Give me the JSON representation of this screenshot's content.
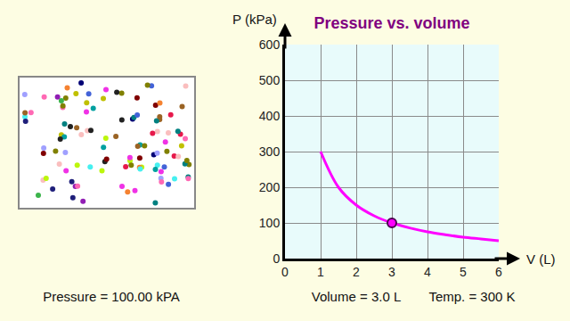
{
  "chart_data": {
    "type": "line",
    "title": "Pressure vs. volume",
    "x_label": "V (L)",
    "y_label": "P (kPa)",
    "x": [
      1,
      1.5,
      2,
      2.5,
      3,
      3.5,
      4,
      4.5,
      5,
      5.5,
      6
    ],
    "values": [
      300,
      200,
      150,
      120,
      100,
      86,
      75,
      67,
      60,
      55,
      50
    ],
    "color": "#ff00ff",
    "highlight": {
      "x": 3,
      "y": 100
    },
    "xlim": [
      0,
      6
    ],
    "ylim": [
      0,
      600
    ],
    "xticks": [
      0,
      1,
      2,
      3,
      4,
      5,
      6
    ],
    "yticks": [
      0,
      100,
      200,
      300,
      400,
      500,
      600
    ],
    "grid": true
  },
  "gas_box": {
    "particles": 110
  },
  "readouts": {
    "pressure": "Pressure = 100.00 kPA",
    "volume": "Volume = 3.0 L",
    "temperature": "Temp. = 300 K"
  }
}
